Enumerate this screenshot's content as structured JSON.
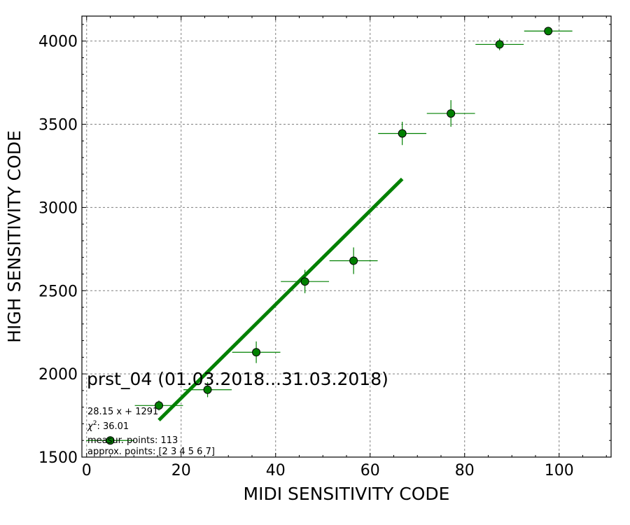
{
  "chart_data": {
    "type": "scatter",
    "title": "",
    "xlabel": "MIDI SENSITIVITY CODE",
    "ylabel": "HIGH SENSITIVITY CODE",
    "xlim": [
      -1,
      111
    ],
    "ylim": [
      1500,
      4150
    ],
    "xticks": [
      0,
      20,
      40,
      60,
      80,
      100
    ],
    "yticks": [
      1500,
      2000,
      2500,
      3000,
      3500,
      4000
    ],
    "grid": true,
    "colors": {
      "points": "#008000",
      "fit": "#008000",
      "grid": "#808080"
    },
    "series": [
      {
        "kind": "errorbar",
        "x": [
          5.0,
          15.3,
          25.6,
          35.9,
          46.2,
          56.5,
          66.8,
          77.1,
          87.4,
          97.7
        ],
        "y": [
          1600,
          1810,
          1905,
          2130,
          2555,
          2680,
          3445,
          3565,
          3980,
          4060
        ],
        "xerr": [
          5.1,
          5.1,
          5.1,
          5.1,
          5.1,
          5.1,
          5.1,
          5.1,
          5.1,
          5.1
        ],
        "yerr": [
          20,
          30,
          45,
          65,
          70,
          80,
          70,
          80,
          35,
          20
        ]
      },
      {
        "kind": "fit-line",
        "x": [
          15.3,
          66.8
        ],
        "y": [
          1721.8,
          3171.5
        ]
      }
    ],
    "annotations": {
      "label": "prst_04 (01.03.2018...31.03.2018)",
      "fit_equation": "28.15 x + 1291",
      "chi2_label": "χ",
      "chi2_exponent": "2",
      "chi2_value": ": 36.01",
      "measur_points": "measur. points: 113",
      "approx_points": "approx. points: [2 3 4 5 6 7]"
    }
  }
}
